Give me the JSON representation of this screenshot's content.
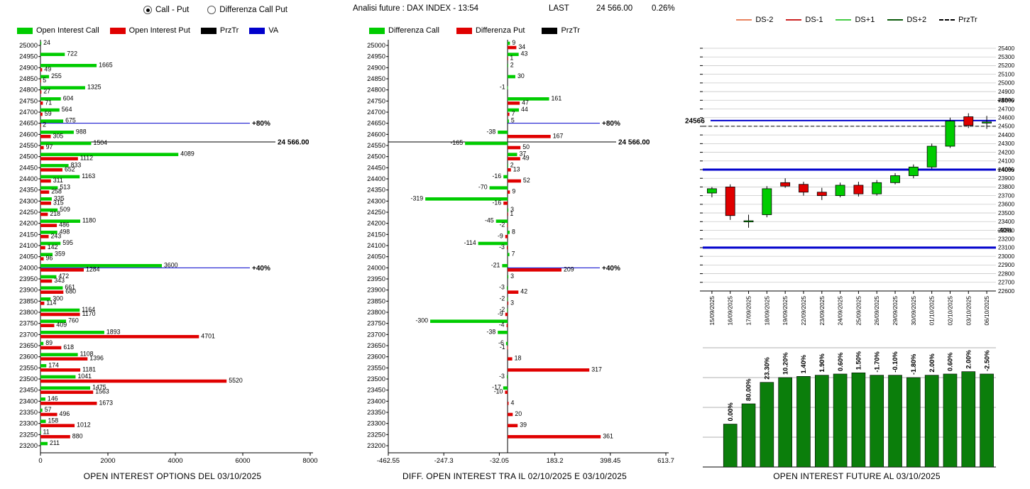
{
  "controls": {
    "radio_call_put": "Call - Put",
    "radio_diff_call_put": "Differenza Call Put",
    "selected": "Call - Put"
  },
  "header": {
    "analisi": "Analisi future : DAX INDEX - 13:54",
    "last_label": "LAST",
    "last_value": "24 566.00",
    "change_pct": "0.26%"
  },
  "colors": {
    "call_green": "#00CC00",
    "put_red": "#E00000",
    "przt_black": "#000000",
    "va_blue": "#0000CC",
    "ds_minus2": "#E8835E",
    "ds_minus1": "#CC2222",
    "ds_plus1": "#44CC44",
    "ds_plus2": "#0A5A0A",
    "future_bar_green": "#0B7E0B",
    "grid_gray": "#C9C9C9"
  },
  "chart_data": [
    {
      "type": "bar",
      "orientation": "horizontal",
      "title": "OPEN INTEREST OPTIONS DEL 03/10/2025",
      "legend": [
        {
          "label": "Open Interest Call",
          "color": "#00CC00"
        },
        {
          "label": "Open Interest Put",
          "color": "#E00000"
        },
        {
          "label": "PrzTr",
          "color": "#000000"
        },
        {
          "label": "VA",
          "color": "#0000CC"
        }
      ],
      "strikes": [
        25000,
        24950,
        24900,
        24850,
        24800,
        24750,
        24700,
        24650,
        24600,
        24550,
        24500,
        24450,
        24400,
        24350,
        24300,
        24250,
        24200,
        24150,
        24100,
        24050,
        24000,
        23950,
        23900,
        23850,
        23800,
        23750,
        23700,
        23650,
        23600,
        23550,
        23500,
        23450,
        23400,
        23350,
        23300,
        23250,
        23200
      ],
      "call": [
        24,
        722,
        1665,
        255,
        1325,
        604,
        564,
        675,
        988,
        1504,
        4089,
        833,
        1163,
        513,
        335,
        509,
        1180,
        498,
        595,
        359,
        3600,
        472,
        661,
        300,
        1164,
        760,
        1893,
        89,
        1108,
        174,
        1041,
        1475,
        146,
        57,
        158,
        11,
        211
      ],
      "put": [
        0,
        0,
        49,
        5,
        27,
        71,
        59,
        2,
        305,
        97,
        1112,
        652,
        311,
        258,
        315,
        218,
        486,
        243,
        142,
        96,
        1284,
        343,
        680,
        114,
        1170,
        409,
        4701,
        618,
        1396,
        1181,
        5520,
        1563,
        1673,
        496,
        1012,
        880,
        0
      ],
      "xlim": [
        0,
        8000
      ],
      "xticks": [
        0,
        2000,
        4000,
        6000,
        8000
      ],
      "xtick_labels": [
        "0",
        "2000",
        "4000",
        "6000",
        "8000"
      ],
      "annotations": [
        {
          "label": "+80%",
          "price": 24650,
          "kind": "percent"
        },
        {
          "label": "24 566.00",
          "price": 24566,
          "kind": "price"
        },
        {
          "label": "+40%",
          "price": 24000,
          "kind": "percent"
        }
      ]
    },
    {
      "type": "bar",
      "orientation": "horizontal",
      "title": "DIFF. OPEN INTEREST TRA IL 02/10/2025 E 03/10/2025",
      "legend": [
        {
          "label": "Differenza Call",
          "color": "#00CC00"
        },
        {
          "label": "Differenza Put",
          "color": "#E00000"
        },
        {
          "label": "PrzTr",
          "color": "#000000"
        }
      ],
      "strikes": [
        25000,
        24950,
        24900,
        24850,
        24800,
        24750,
        24700,
        24650,
        24600,
        24550,
        24500,
        24450,
        24400,
        24350,
        24300,
        24250,
        24200,
        24150,
        24100,
        24050,
        24000,
        23950,
        23900,
        23850,
        23800,
        23750,
        23700,
        23650,
        23600,
        23550,
        23500,
        23450,
        23400,
        23350,
        23300,
        23250,
        23200
      ],
      "diff_call": [
        9,
        43,
        2,
        30,
        -1,
        161,
        44,
        5,
        -38,
        -165,
        37,
        2,
        -16,
        -70,
        -319,
        3,
        -45,
        8,
        -114,
        7,
        -21,
        3,
        -3,
        -2,
        -2,
        -300,
        -38,
        -6,
        0,
        0,
        -3,
        -17,
        0,
        0,
        0,
        0,
        0
      ],
      "diff_put": [
        34,
        1,
        0,
        0,
        0,
        47,
        7,
        0,
        167,
        50,
        49,
        13,
        52,
        9,
        -16,
        1,
        -2,
        -9,
        -3,
        0,
        209,
        0,
        42,
        3,
        -9,
        -4,
        0,
        -1,
        18,
        317,
        0,
        -10,
        4,
        20,
        39,
        361,
        0
      ],
      "xlim": [
        -462.55,
        613.7
      ],
      "xticks": [
        -462.55,
        -247.3,
        -32.05,
        183.2,
        398.45,
        613.7
      ],
      "xtick_labels": [
        "-462.55",
        "-247.3",
        "-32.05",
        "183.2",
        "398.45",
        "613.7"
      ],
      "annotations": [
        {
          "label": "+80%",
          "price": 24650,
          "kind": "percent"
        },
        {
          "label": "24 566.00",
          "price": 24566,
          "kind": "price"
        },
        {
          "label": "+40%",
          "price": 24000,
          "kind": "percent"
        }
      ]
    },
    {
      "type": "candlestick",
      "legend": [
        {
          "label": "DS-2",
          "color": "#E8835E"
        },
        {
          "label": "DS-1",
          "color": "#CC2222"
        },
        {
          "label": "DS+1",
          "color": "#44CC44"
        },
        {
          "label": "DS+2",
          "color": "#0A5A0A"
        },
        {
          "label": "PrzTr",
          "color": "#000000",
          "dash": true
        }
      ],
      "dates": [
        "15/09/2025",
        "16/09/2025",
        "17/09/2025",
        "18/09/2025",
        "19/09/2025",
        "22/09/2025",
        "23/09/2025",
        "24/09/2025",
        "25/09/2025",
        "26/09/2025",
        "29/09/2025",
        "30/09/2025",
        "01/10/2025",
        "02/10/2025",
        "03/10/2025",
        "06/10/2025"
      ],
      "ohlc": [
        [
          23730,
          23800,
          23680,
          23780
        ],
        [
          23800,
          23830,
          23420,
          23470
        ],
        [
          23400,
          23480,
          23330,
          23410
        ],
        [
          23480,
          23810,
          23450,
          23780
        ],
        [
          23850,
          23900,
          23790,
          23810
        ],
        [
          23830,
          23860,
          23700,
          23740
        ],
        [
          23740,
          23790,
          23650,
          23700
        ],
        [
          23700,
          23850,
          23680,
          23820
        ],
        [
          23820,
          23860,
          23690,
          23720
        ],
        [
          23720,
          23880,
          23700,
          23850
        ],
        [
          23850,
          23960,
          23830,
          23930
        ],
        [
          23930,
          24060,
          23900,
          24030
        ],
        [
          24030,
          24300,
          24010,
          24270
        ],
        [
          24270,
          24600,
          24250,
          24560
        ],
        [
          24610,
          24650,
          24480,
          24510
        ],
        [
          24540,
          24620,
          24470,
          24550
        ]
      ],
      "ylim": [
        22600,
        25400
      ],
      "ytick_step": 100,
      "lines": [
        {
          "value": 24566,
          "color": "#0000CC",
          "width": 2,
          "label_left": "24566"
        },
        {
          "value": 24500,
          "color": "#000000",
          "width": 1,
          "dash": true
        },
        {
          "value": 24000,
          "color": "#0000CC",
          "width": 3
        },
        {
          "value": 23100,
          "color": "#0000CC",
          "width": 3
        }
      ],
      "right_labels": [
        {
          "value": 24800,
          "label": "+80%"
        },
        {
          "value": 24000,
          "label": "+40%"
        },
        {
          "value": 23300,
          "label": "-40%"
        }
      ]
    },
    {
      "type": "bar",
      "title": "OPEN INTEREST FUTURE AL 03/10/2025",
      "labels": [
        "0.00%",
        "80.00%",
        "23.30%",
        "10.20%",
        "1.40%",
        "1.90%",
        "0.60%",
        "1.50%",
        "-1.70%",
        "-0.10%",
        "-1.80%",
        "2.00%",
        "0.60%",
        "2.00%",
        "-2.50%"
      ],
      "values": [
        0.36,
        0.53,
        0.71,
        0.75,
        0.76,
        0.77,
        0.78,
        0.79,
        0.77,
        0.77,
        0.75,
        0.77,
        0.78,
        0.8,
        0.78
      ]
    }
  ]
}
